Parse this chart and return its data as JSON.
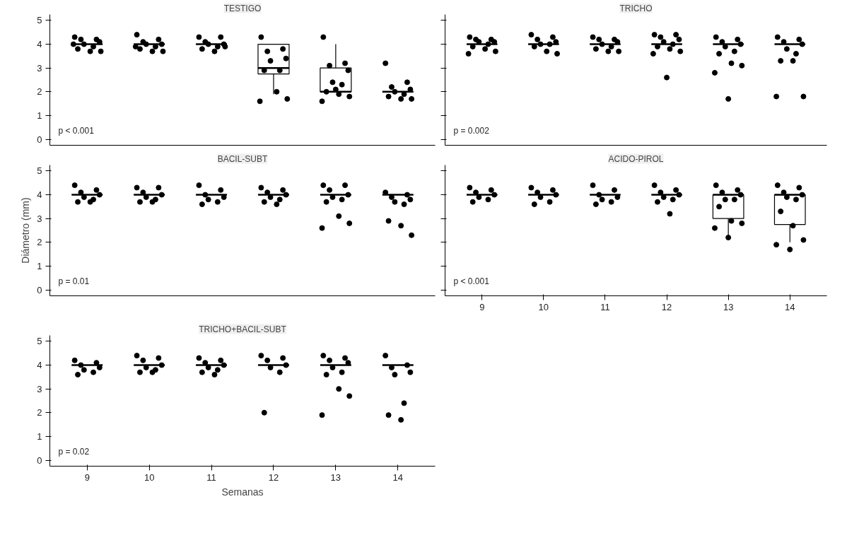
{
  "chart_data": [
    {
      "type": "box",
      "title": "TESTIGO",
      "x": [
        9,
        10,
        11,
        12,
        13,
        14
      ],
      "xlim": [
        8.4,
        14.6
      ],
      "xticks": [
        9,
        10,
        11,
        12,
        13,
        14
      ],
      "ylim": [
        -0.25,
        5.25
      ],
      "yticks": [
        0,
        1,
        2,
        3,
        4,
        5
      ],
      "tick_labels": "y",
      "grid": false,
      "annotations": [
        "p < 0.001"
      ],
      "boxes": [
        {
          "low": 4,
          "q1": 4,
          "median": 4,
          "q3": 4,
          "high": 4
        },
        {
          "low": 4,
          "q1": 4,
          "median": 4,
          "q3": 4,
          "high": 4
        },
        {
          "low": 4,
          "q1": 4,
          "median": 4,
          "q3": 4,
          "high": 4
        },
        {
          "low": 1.9,
          "q1": 2.75,
          "median": 3.0,
          "q3": 4.0,
          "high": 4.0
        },
        {
          "low": 2.0,
          "q1": 2.0,
          "median": 2.0,
          "q3": 3.0,
          "high": 4.0
        },
        {
          "low": 2,
          "q1": 2,
          "median": 2,
          "q3": 2,
          "high": 2
        }
      ],
      "series": [
        {
          "type": "scatter",
          "color": "#000000",
          "marker": "circle",
          "x": [
            8.8,
            9.15,
            8.9,
            9.2,
            8.95,
            9.1,
            8.85,
            9.05,
            9.22,
            8.78,
            9.8,
            10.15,
            9.9,
            10.2,
            9.95,
            10.1,
            9.85,
            10.05,
            10.22,
            9.78,
            10.8,
            11.15,
            10.9,
            11.2,
            10.95,
            11.1,
            10.85,
            11.05,
            11.22,
            11.8,
            12.15,
            11.9,
            12.2,
            11.95,
            12.1,
            11.85,
            12.05,
            12.22,
            11.78,
            12.8,
            13.15,
            12.9,
            13.2,
            12.95,
            13.1,
            12.85,
            13.05,
            13.22,
            12.78,
            13.0,
            13.8,
            14.15,
            13.9,
            14.2,
            13.95,
            14.1,
            13.85,
            14.05,
            14.22
          ],
          "values": [
            4.3,
            4.2,
            4.2,
            4.1,
            4.0,
            3.9,
            3.8,
            3.7,
            3.7,
            4.0,
            4.4,
            4.2,
            4.1,
            4.0,
            4.0,
            3.9,
            3.8,
            3.7,
            3.7,
            3.9,
            4.3,
            4.3,
            4.1,
            4.0,
            4.0,
            3.9,
            3.8,
            3.7,
            3.9,
            4.3,
            3.8,
            3.7,
            3.4,
            3.3,
            2.9,
            2.9,
            2.0,
            1.7,
            1.6,
            4.3,
            3.2,
            3.1,
            2.9,
            2.4,
            2.3,
            2.0,
            1.9,
            1.8,
            1.6,
            2.1,
            3.2,
            2.4,
            2.2,
            2.1,
            2.0,
            1.9,
            1.8,
            1.7,
            1.7
          ]
        }
      ]
    },
    {
      "type": "box",
      "title": "TRICHO",
      "x": [
        9,
        10,
        11,
        12,
        13,
        14
      ],
      "xlim": [
        8.4,
        14.6
      ],
      "xticks": [
        9,
        10,
        11,
        12,
        13,
        14
      ],
      "ylim": [
        -0.25,
        5.25
      ],
      "yticks": [
        0,
        1,
        2,
        3,
        4,
        5
      ],
      "tick_labels": false,
      "grid": false,
      "annotations": [
        "p = 0.002"
      ],
      "boxes": [
        {
          "low": 4,
          "q1": 4,
          "median": 4,
          "q3": 4,
          "high": 4
        },
        {
          "low": 4,
          "q1": 4,
          "median": 4,
          "q3": 4,
          "high": 4
        },
        {
          "low": 4,
          "q1": 4,
          "median": 4,
          "q3": 4,
          "high": 4
        },
        {
          "low": 4,
          "q1": 4,
          "median": 4,
          "q3": 4,
          "high": 4
        },
        {
          "low": 4,
          "q1": 4,
          "median": 4,
          "q3": 4,
          "high": 4
        },
        {
          "low": 4,
          "q1": 4,
          "median": 4,
          "q3": 4,
          "high": 4
        }
      ],
      "series": [
        {
          "type": "scatter",
          "color": "#000000",
          "marker": "circle",
          "x": [
            8.8,
            9.15,
            8.9,
            9.2,
            8.95,
            9.1,
            8.85,
            9.05,
            9.22,
            8.78,
            9.8,
            10.15,
            9.9,
            10.2,
            9.95,
            10.1,
            9.85,
            10.05,
            10.22,
            10.8,
            11.15,
            10.9,
            11.2,
            10.95,
            11.1,
            10.85,
            11.05,
            11.22,
            11.8,
            12.15,
            11.9,
            12.2,
            11.95,
            12.1,
            11.85,
            12.05,
            12.22,
            11.78,
            12.0,
            12.8,
            13.15,
            12.9,
            13.2,
            12.95,
            13.1,
            12.85,
            13.05,
            13.22,
            12.78,
            13.0,
            13.8,
            14.15,
            13.9,
            14.2,
            13.95,
            14.1,
            13.85,
            14.05,
            14.22,
            13.78
          ],
          "values": [
            4.3,
            4.2,
            4.2,
            4.1,
            4.1,
            4.0,
            3.9,
            3.8,
            3.7,
            3.6,
            4.4,
            4.3,
            4.2,
            4.1,
            4.0,
            4.0,
            3.9,
            3.7,
            3.6,
            4.3,
            4.2,
            4.2,
            4.1,
            4.0,
            3.9,
            3.8,
            3.7,
            3.7,
            4.4,
            4.4,
            4.3,
            4.2,
            4.1,
            4.0,
            3.9,
            3.8,
            3.7,
            3.6,
            2.6,
            4.3,
            4.2,
            4.1,
            4.0,
            3.9,
            3.7,
            3.6,
            3.2,
            3.1,
            2.8,
            1.7,
            4.3,
            4.2,
            4.1,
            4.0,
            3.8,
            3.6,
            3.3,
            3.3,
            1.8,
            1.8
          ]
        }
      ]
    },
    {
      "type": "box",
      "title": "BACIL-SUBT",
      "ylabel": "Diámetro (mm)",
      "x": [
        9,
        10,
        11,
        12,
        13,
        14
      ],
      "xlim": [
        8.4,
        14.6
      ],
      "xticks": [
        9,
        10,
        11,
        12,
        13,
        14
      ],
      "ylim": [
        -0.25,
        5.25
      ],
      "yticks": [
        0,
        1,
        2,
        3,
        4,
        5
      ],
      "tick_labels": "y",
      "grid": false,
      "annotations": [
        "p = 0.01"
      ],
      "boxes": [
        {
          "low": 4,
          "q1": 4,
          "median": 4,
          "q3": 4,
          "high": 4
        },
        {
          "low": 4,
          "q1": 4,
          "median": 4,
          "q3": 4,
          "high": 4
        },
        {
          "low": 4,
          "q1": 4,
          "median": 4,
          "q3": 4,
          "high": 4
        },
        {
          "low": 4,
          "q1": 4,
          "median": 4,
          "q3": 4,
          "high": 4
        },
        {
          "low": 4,
          "q1": 4,
          "median": 4,
          "q3": 4,
          "high": 4
        },
        {
          "low": 4,
          "q1": 4,
          "median": 4,
          "q3": 4,
          "high": 4
        }
      ],
      "series": [
        {
          "type": "scatter",
          "color": "#000000",
          "marker": "circle",
          "x": [
            8.8,
            9.15,
            8.9,
            9.2,
            8.95,
            9.1,
            8.85,
            9.05,
            9.8,
            10.15,
            9.9,
            10.2,
            9.95,
            10.1,
            9.85,
            10.05,
            10.8,
            11.15,
            10.9,
            11.2,
            10.95,
            11.1,
            10.85,
            11.8,
            12.15,
            11.9,
            12.2,
            11.95,
            12.1,
            11.85,
            12.05,
            12.8,
            13.15,
            12.9,
            13.2,
            12.95,
            13.1,
            12.85,
            13.05,
            13.22,
            12.78,
            13.8,
            14.15,
            13.9,
            14.2,
            13.95,
            14.1,
            13.85,
            14.05,
            14.22
          ],
          "values": [
            4.4,
            4.2,
            4.1,
            4.0,
            3.9,
            3.8,
            3.7,
            3.7,
            4.3,
            4.3,
            4.1,
            4.0,
            3.9,
            3.8,
            3.7,
            3.7,
            4.4,
            4.2,
            4.0,
            3.9,
            3.8,
            3.7,
            3.6,
            4.3,
            4.2,
            4.1,
            4.0,
            3.9,
            3.8,
            3.7,
            3.6,
            4.4,
            4.4,
            4.2,
            4.0,
            3.9,
            3.8,
            3.7,
            3.1,
            2.8,
            2.6,
            4.1,
            4.0,
            3.9,
            3.8,
            3.7,
            3.6,
            2.9,
            2.7,
            2.3
          ]
        }
      ]
    },
    {
      "type": "box",
      "title": "ACIDO-PIROL",
      "x": [
        9,
        10,
        11,
        12,
        13,
        14
      ],
      "xlim": [
        8.4,
        14.6
      ],
      "xticks": [
        9,
        10,
        11,
        12,
        13,
        14
      ],
      "ylim": [
        -0.25,
        5.25
      ],
      "yticks": [
        0,
        1,
        2,
        3,
        4,
        5
      ],
      "tick_labels": "x",
      "grid": false,
      "annotations": [
        "p < 0.001"
      ],
      "boxes": [
        {
          "low": 4,
          "q1": 4,
          "median": 4,
          "q3": 4,
          "high": 4
        },
        {
          "low": 4,
          "q1": 4,
          "median": 4,
          "q3": 4,
          "high": 4
        },
        {
          "low": 4,
          "q1": 4,
          "median": 4,
          "q3": 4,
          "high": 4
        },
        {
          "low": 4,
          "q1": 4,
          "median": 4,
          "q3": 4,
          "high": 4
        },
        {
          "low": 2.1,
          "q1": 3.0,
          "median": 4.0,
          "q3": 4.0,
          "high": 4.0
        },
        {
          "low": 2.0,
          "q1": 2.75,
          "median": 4.0,
          "q3": 4.0,
          "high": 4.0
        }
      ],
      "series": [
        {
          "type": "scatter",
          "color": "#000000",
          "marker": "circle",
          "x": [
            8.8,
            9.15,
            8.9,
            9.2,
            8.95,
            9.1,
            8.85,
            9.8,
            10.15,
            9.9,
            10.2,
            9.95,
            10.1,
            9.85,
            10.8,
            11.15,
            10.9,
            11.2,
            10.95,
            11.1,
            10.85,
            11.8,
            12.15,
            11.9,
            12.2,
            11.95,
            12.1,
            11.85,
            12.05,
            12.8,
            13.15,
            12.9,
            13.2,
            12.95,
            13.1,
            12.85,
            13.05,
            13.22,
            12.78,
            13.0,
            13.8,
            14.15,
            13.9,
            14.2,
            13.95,
            14.1,
            13.85,
            14.05,
            14.22,
            13.78,
            14.0
          ],
          "values": [
            4.3,
            4.2,
            4.1,
            4.0,
            3.9,
            3.8,
            3.7,
            4.3,
            4.2,
            4.1,
            4.0,
            3.9,
            3.7,
            3.6,
            4.4,
            4.2,
            4.0,
            3.9,
            3.8,
            3.7,
            3.6,
            4.4,
            4.2,
            4.1,
            4.0,
            3.9,
            3.8,
            3.7,
            3.2,
            4.4,
            4.2,
            4.1,
            4.0,
            3.8,
            3.8,
            3.5,
            2.9,
            2.8,
            2.6,
            2.2,
            4.4,
            4.3,
            4.1,
            4.0,
            3.9,
            3.8,
            3.3,
            2.7,
            2.1,
            1.9,
            1.7
          ]
        }
      ]
    },
    {
      "type": "box",
      "title": "TRICHO+BACIL-SUBT",
      "xlabel": "Semanas",
      "x": [
        9,
        10,
        11,
        12,
        13,
        14
      ],
      "xlim": [
        8.4,
        14.6
      ],
      "xticks": [
        9,
        10,
        11,
        12,
        13,
        14
      ],
      "ylim": [
        -0.25,
        5.25
      ],
      "yticks": [
        0,
        1,
        2,
        3,
        4,
        5
      ],
      "grid": false,
      "annotations": [
        "p = 0.02"
      ],
      "boxes": [
        {
          "low": 4,
          "q1": 4,
          "median": 4,
          "q3": 4,
          "high": 4
        },
        {
          "low": 4,
          "q1": 4,
          "median": 4,
          "q3": 4,
          "high": 4
        },
        {
          "low": 4,
          "q1": 4,
          "median": 4,
          "q3": 4,
          "high": 4
        },
        {
          "low": 4,
          "q1": 4,
          "median": 4,
          "q3": 4,
          "high": 4
        },
        {
          "low": 4,
          "q1": 4,
          "median": 4,
          "q3": 4,
          "high": 4
        },
        {
          "low": 4,
          "q1": 4,
          "median": 4,
          "q3": 4,
          "high": 4
        }
      ],
      "series": [
        {
          "type": "scatter",
          "color": "#000000",
          "marker": "circle",
          "x": [
            8.8,
            9.15,
            8.9,
            9.2,
            8.95,
            9.1,
            8.85,
            9.8,
            10.15,
            9.9,
            10.2,
            9.95,
            10.1,
            9.85,
            10.05,
            10.8,
            11.15,
            10.9,
            11.2,
            10.95,
            11.1,
            10.85,
            11.05,
            11.8,
            12.15,
            11.9,
            12.2,
            11.95,
            12.1,
            11.85,
            12.8,
            13.15,
            12.9,
            13.2,
            12.95,
            13.1,
            12.85,
            13.05,
            13.22,
            12.78,
            13.8,
            14.15,
            13.9,
            14.2,
            13.95,
            14.1,
            13.85,
            14.05
          ],
          "values": [
            4.2,
            4.1,
            4.0,
            3.9,
            3.8,
            3.7,
            3.6,
            4.4,
            4.3,
            4.2,
            4.0,
            3.9,
            3.8,
            3.7,
            3.7,
            4.3,
            4.2,
            4.1,
            4.0,
            3.9,
            3.8,
            3.7,
            3.6,
            4.4,
            4.3,
            4.2,
            4.0,
            3.9,
            3.7,
            2.0,
            4.4,
            4.3,
            4.2,
            4.1,
            3.9,
            3.7,
            3.6,
            3.0,
            2.7,
            1.9,
            4.4,
            4.0,
            3.9,
            3.7,
            3.6,
            2.4,
            1.9,
            1.7
          ]
        }
      ]
    }
  ]
}
